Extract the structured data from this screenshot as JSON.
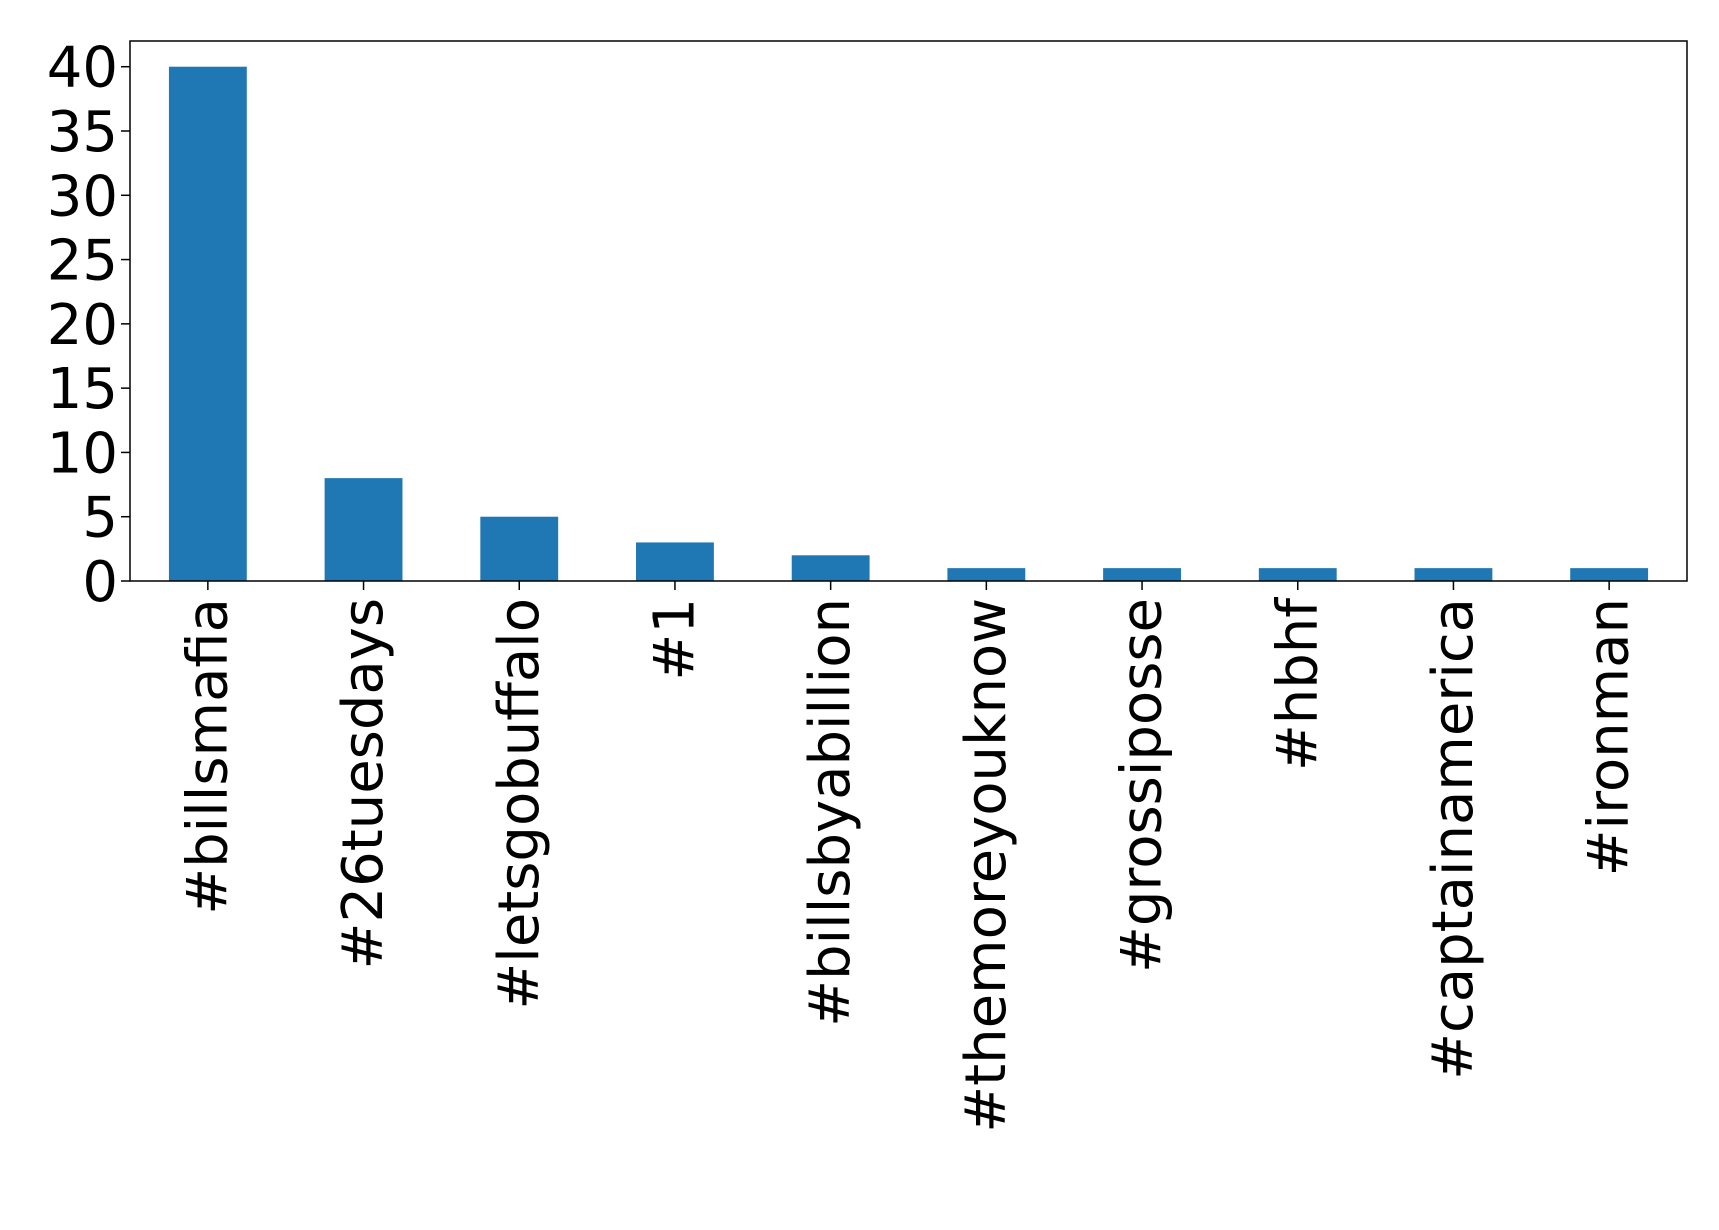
{
  "chart_data": {
    "type": "bar",
    "categories": [
      "#billsmafia",
      "#26tuesdays",
      "#letsgobuffalo",
      "#1",
      "#billsbyabillion",
      "#themoreyouknow",
      "#grossiposse",
      "#hbhf",
      "#captainamerica",
      "#ironman"
    ],
    "values": [
      40,
      8,
      5,
      3,
      2,
      1,
      1,
      1,
      1,
      1
    ],
    "title": "",
    "xlabel": "",
    "ylabel": "",
    "ylim": [
      0,
      42
    ],
    "yticks": [
      0,
      5,
      10,
      15,
      20,
      25,
      30,
      35,
      40
    ],
    "grid": false,
    "legend": "none",
    "bar_color": "#1f77b4"
  }
}
